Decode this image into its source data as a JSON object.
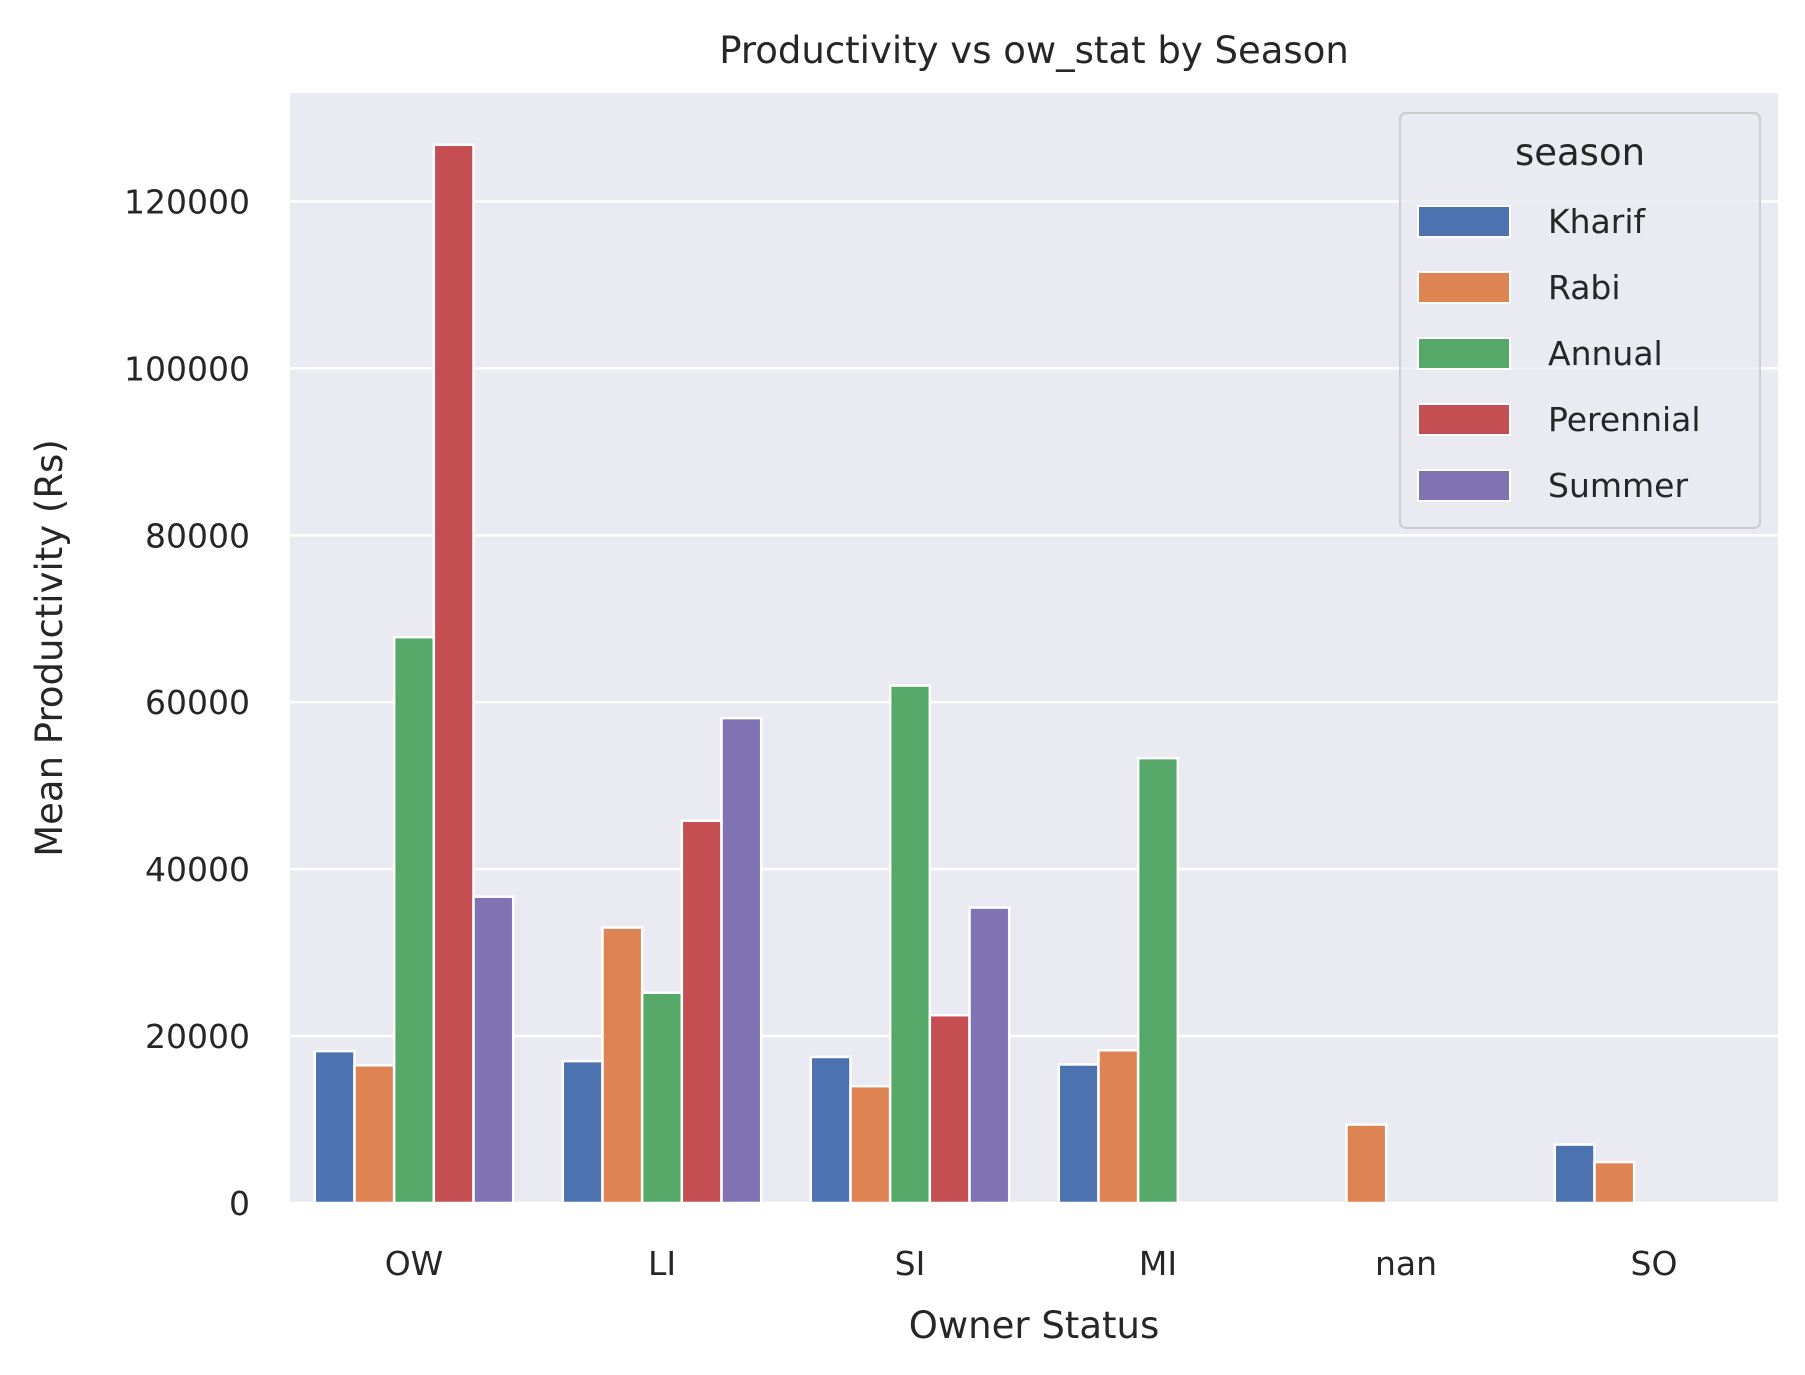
{
  "chart_data": {
    "type": "bar",
    "title": "Productivity vs ow_stat by Season",
    "xlabel": "Owner Status",
    "ylabel": "Mean Productivity (Rs)",
    "categories": [
      "OW",
      "LI",
      "SI",
      "MI",
      "nan",
      "SO"
    ],
    "ylim": [
      0,
      133000
    ],
    "yticks": [
      0,
      20000,
      40000,
      60000,
      80000,
      100000,
      120000
    ],
    "grid": true,
    "legend": {
      "title": "season",
      "placement": "top-right"
    },
    "series": [
      {
        "name": "Kharif",
        "color": "#4c72b0",
        "values": [
          18200,
          17000,
          17500,
          16600,
          null,
          7000
        ]
      },
      {
        "name": "Rabi",
        "color": "#dd8452",
        "values": [
          16500,
          33000,
          14000,
          18300,
          9400,
          4900
        ]
      },
      {
        "name": "Annual",
        "color": "#55a868",
        "values": [
          67800,
          25200,
          62000,
          53300,
          null,
          null
        ]
      },
      {
        "name": "Perennial",
        "color": "#c44e52",
        "values": [
          126800,
          45800,
          22500,
          null,
          null,
          null
        ]
      },
      {
        "name": "Summer",
        "color": "#8172b3",
        "values": [
          36700,
          58100,
          35400,
          null,
          null,
          null
        ]
      }
    ],
    "colors": {
      "plot_background": "#eaeaf2",
      "grid": "#ffffff",
      "text": "#262626"
    }
  }
}
